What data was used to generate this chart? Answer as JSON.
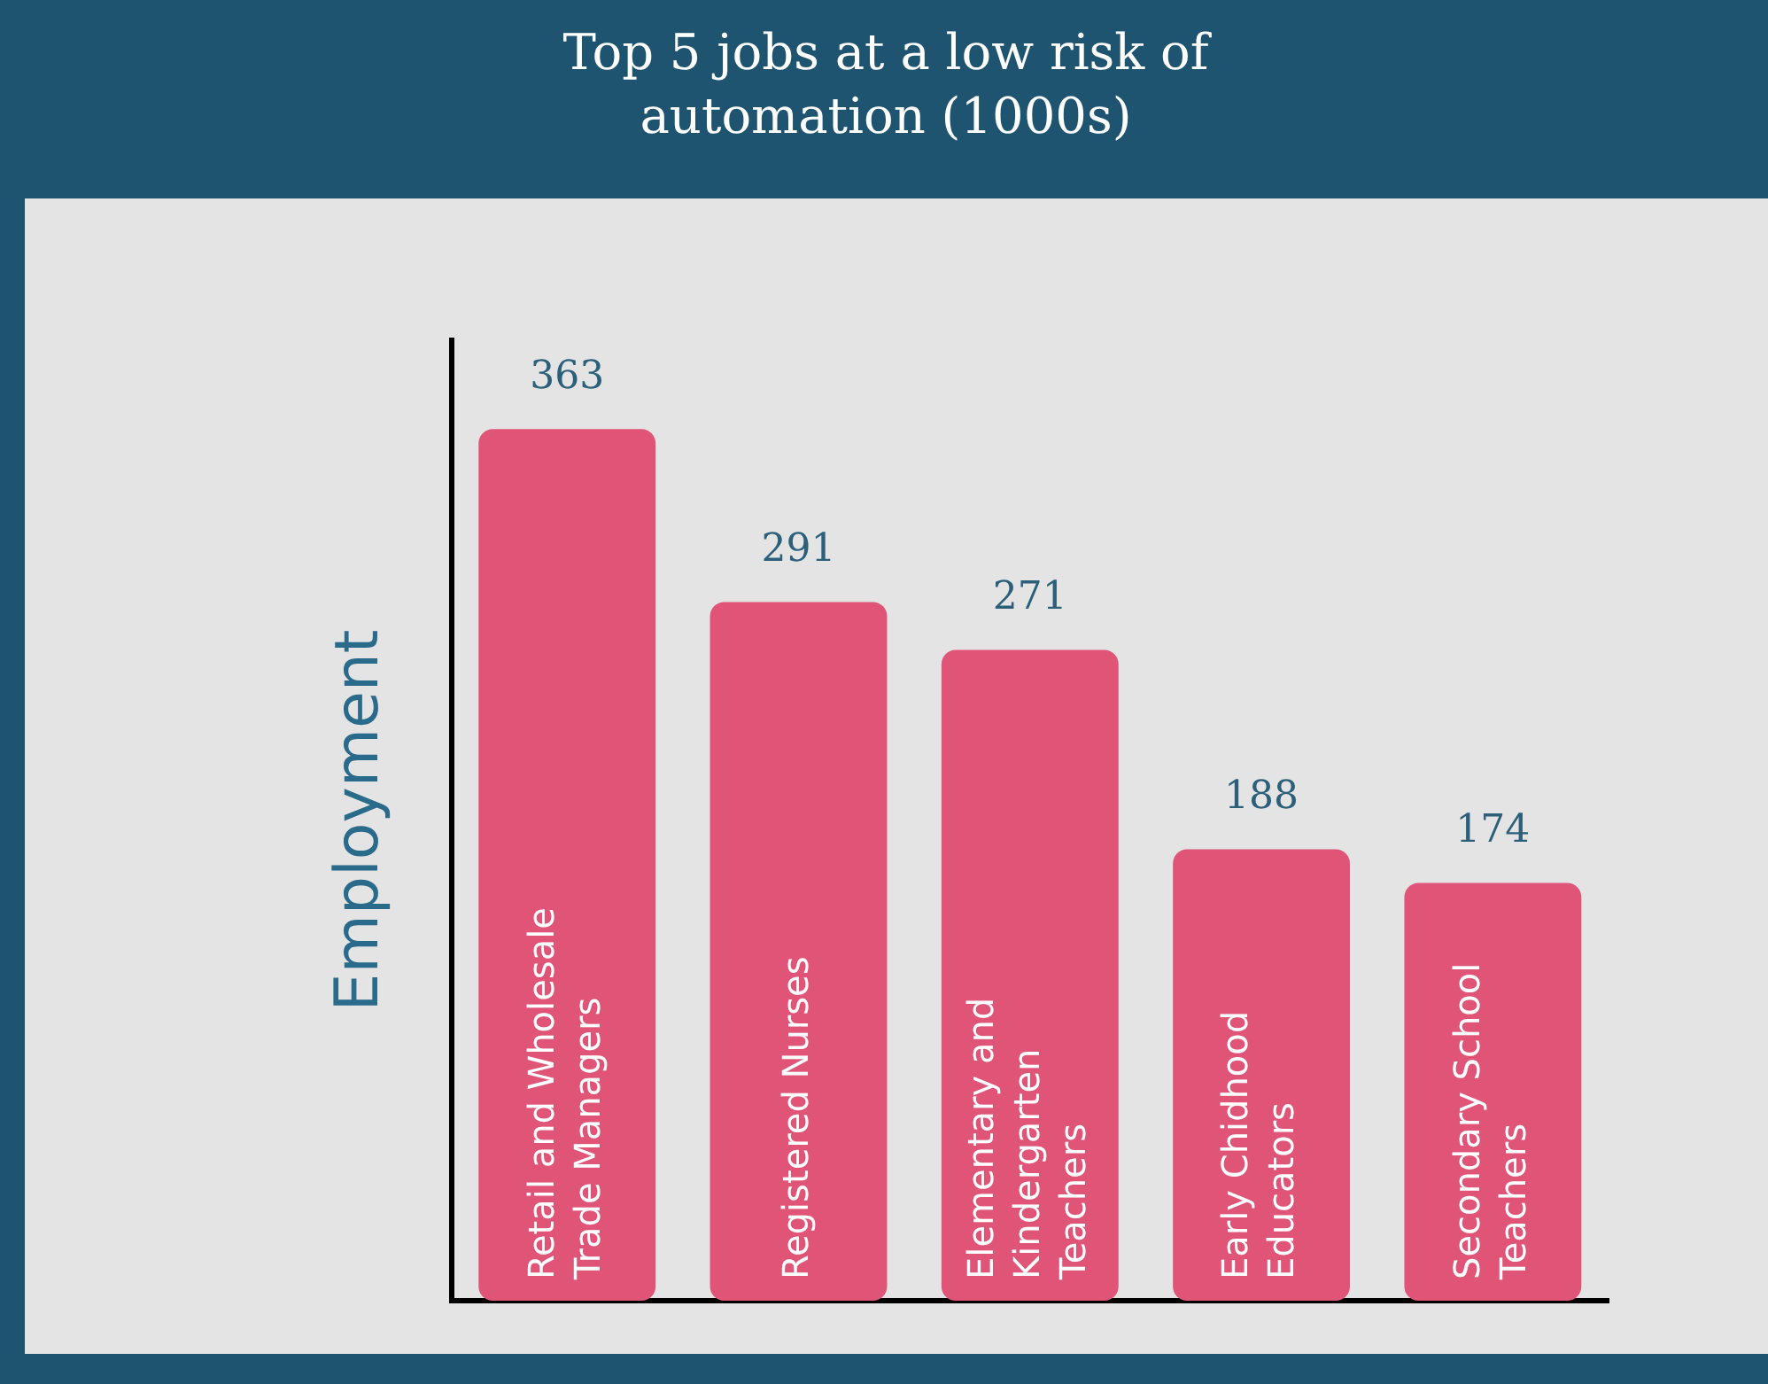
{
  "chart_data": {
    "type": "bar",
    "title": "Top 5 jobs at a low risk of automation  (1000s)",
    "ylabel": "Employment",
    "categories": [
      "Retail and Wholesale Trade Managers",
      "Registered Nurses",
      "Elementary and Kindergarten Teachers",
      "Early Chidhood Educators",
      "Secondary School Teachers"
    ],
    "values": [
      363,
      291,
      271,
      188,
      174
    ],
    "color": "#e05577",
    "data_labels": true,
    "grid": false,
    "legend": false
  }
}
